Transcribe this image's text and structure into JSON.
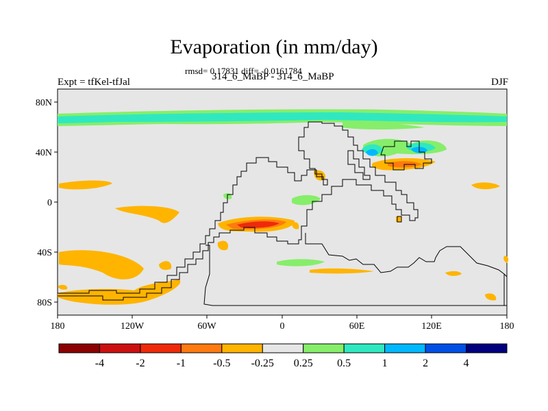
{
  "title": "Evaporation (in mm/day)",
  "stats": "rmsd= 0.17831 diff= -0.0161784",
  "pair": "314_6_MaBP - 314_6_MaBP",
  "expt": "Expt = tfKel-tfJal",
  "season": "DJF",
  "map": {
    "background": "#e6e6e6",
    "lon_range": [
      -180,
      180
    ],
    "lat_range": [
      -90,
      90
    ],
    "x_ticks": [
      "180",
      "120W",
      "60W",
      "0",
      "60E",
      "120E",
      "180"
    ],
    "y_ticks": [
      "80N",
      "40N",
      "0",
      "40S",
      "80S"
    ]
  },
  "colorbar": {
    "colors": [
      "#8b0000",
      "#cc1010",
      "#ee2a0a",
      "#ff7a10",
      "#ffb400",
      "#e6e6e6",
      "#86ee6a",
      "#30e8c0",
      "#00b8ff",
      "#0050e6",
      "#00007f"
    ],
    "labels": [
      "-4",
      "-2",
      "-1",
      "-0.5",
      "-0.25",
      "0.25",
      "0.5",
      "1",
      "2",
      "4"
    ]
  }
}
